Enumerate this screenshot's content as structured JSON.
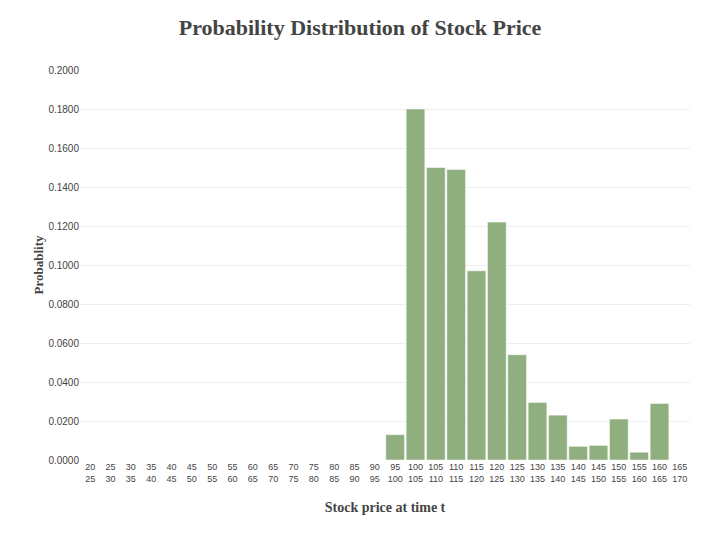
{
  "chart_data": {
    "type": "bar",
    "title": "Probability Distribution of Stock Price",
    "xlabel": "Stock price at time t",
    "ylabel": "Probablity",
    "categories": [
      "20\n25",
      "25\n30",
      "30\n35",
      "35\n40",
      "40\n45",
      "45\n50",
      "50\n55",
      "55\n60",
      "60\n65",
      "65\n70",
      "70\n75",
      "75\n80",
      "80\n85",
      "85\n90",
      "90\n95",
      "95\n100",
      "100\n105",
      "105\n110",
      "110\n115",
      "115\n120",
      "120\n125",
      "125\n130",
      "130\n135",
      "135\n140",
      "140\n145",
      "145\n150",
      "150\n155",
      "155\n160",
      "160\n165",
      "165\n170"
    ],
    "values": [
      0.0,
      0.0,
      0.0,
      0.0,
      0.0,
      0.0,
      0.0,
      0.0,
      0.0,
      0.0,
      0.0,
      0.0,
      0.0,
      0.0,
      0.0,
      0.013,
      0.18,
      0.15,
      0.149,
      0.097,
      0.122,
      0.054,
      0.0295,
      0.023,
      0.007,
      0.0075,
      0.021,
      0.004,
      0.029,
      0.0
    ],
    "color": "#8faf7e",
    "ylim": [
      0.0,
      0.2
    ],
    "yticks": [
      {
        "value": 0.0,
        "label": "0.0000"
      },
      {
        "value": 0.02,
        "label": "0.0200"
      },
      {
        "value": 0.04,
        "label": "0.0400"
      },
      {
        "value": 0.06,
        "label": "0.0600"
      },
      {
        "value": 0.08,
        "label": "0.0800"
      },
      {
        "value": 0.1,
        "label": "0.1000"
      },
      {
        "value": 0.12,
        "label": "0.1200"
      },
      {
        "value": 0.14,
        "label": "0.1400"
      },
      {
        "value": 0.16,
        "label": "0.1600"
      },
      {
        "value": 0.18,
        "label": "0.1800"
      },
      {
        "value": 0.2,
        "label": "0.2000"
      }
    ],
    "grid": true
  }
}
